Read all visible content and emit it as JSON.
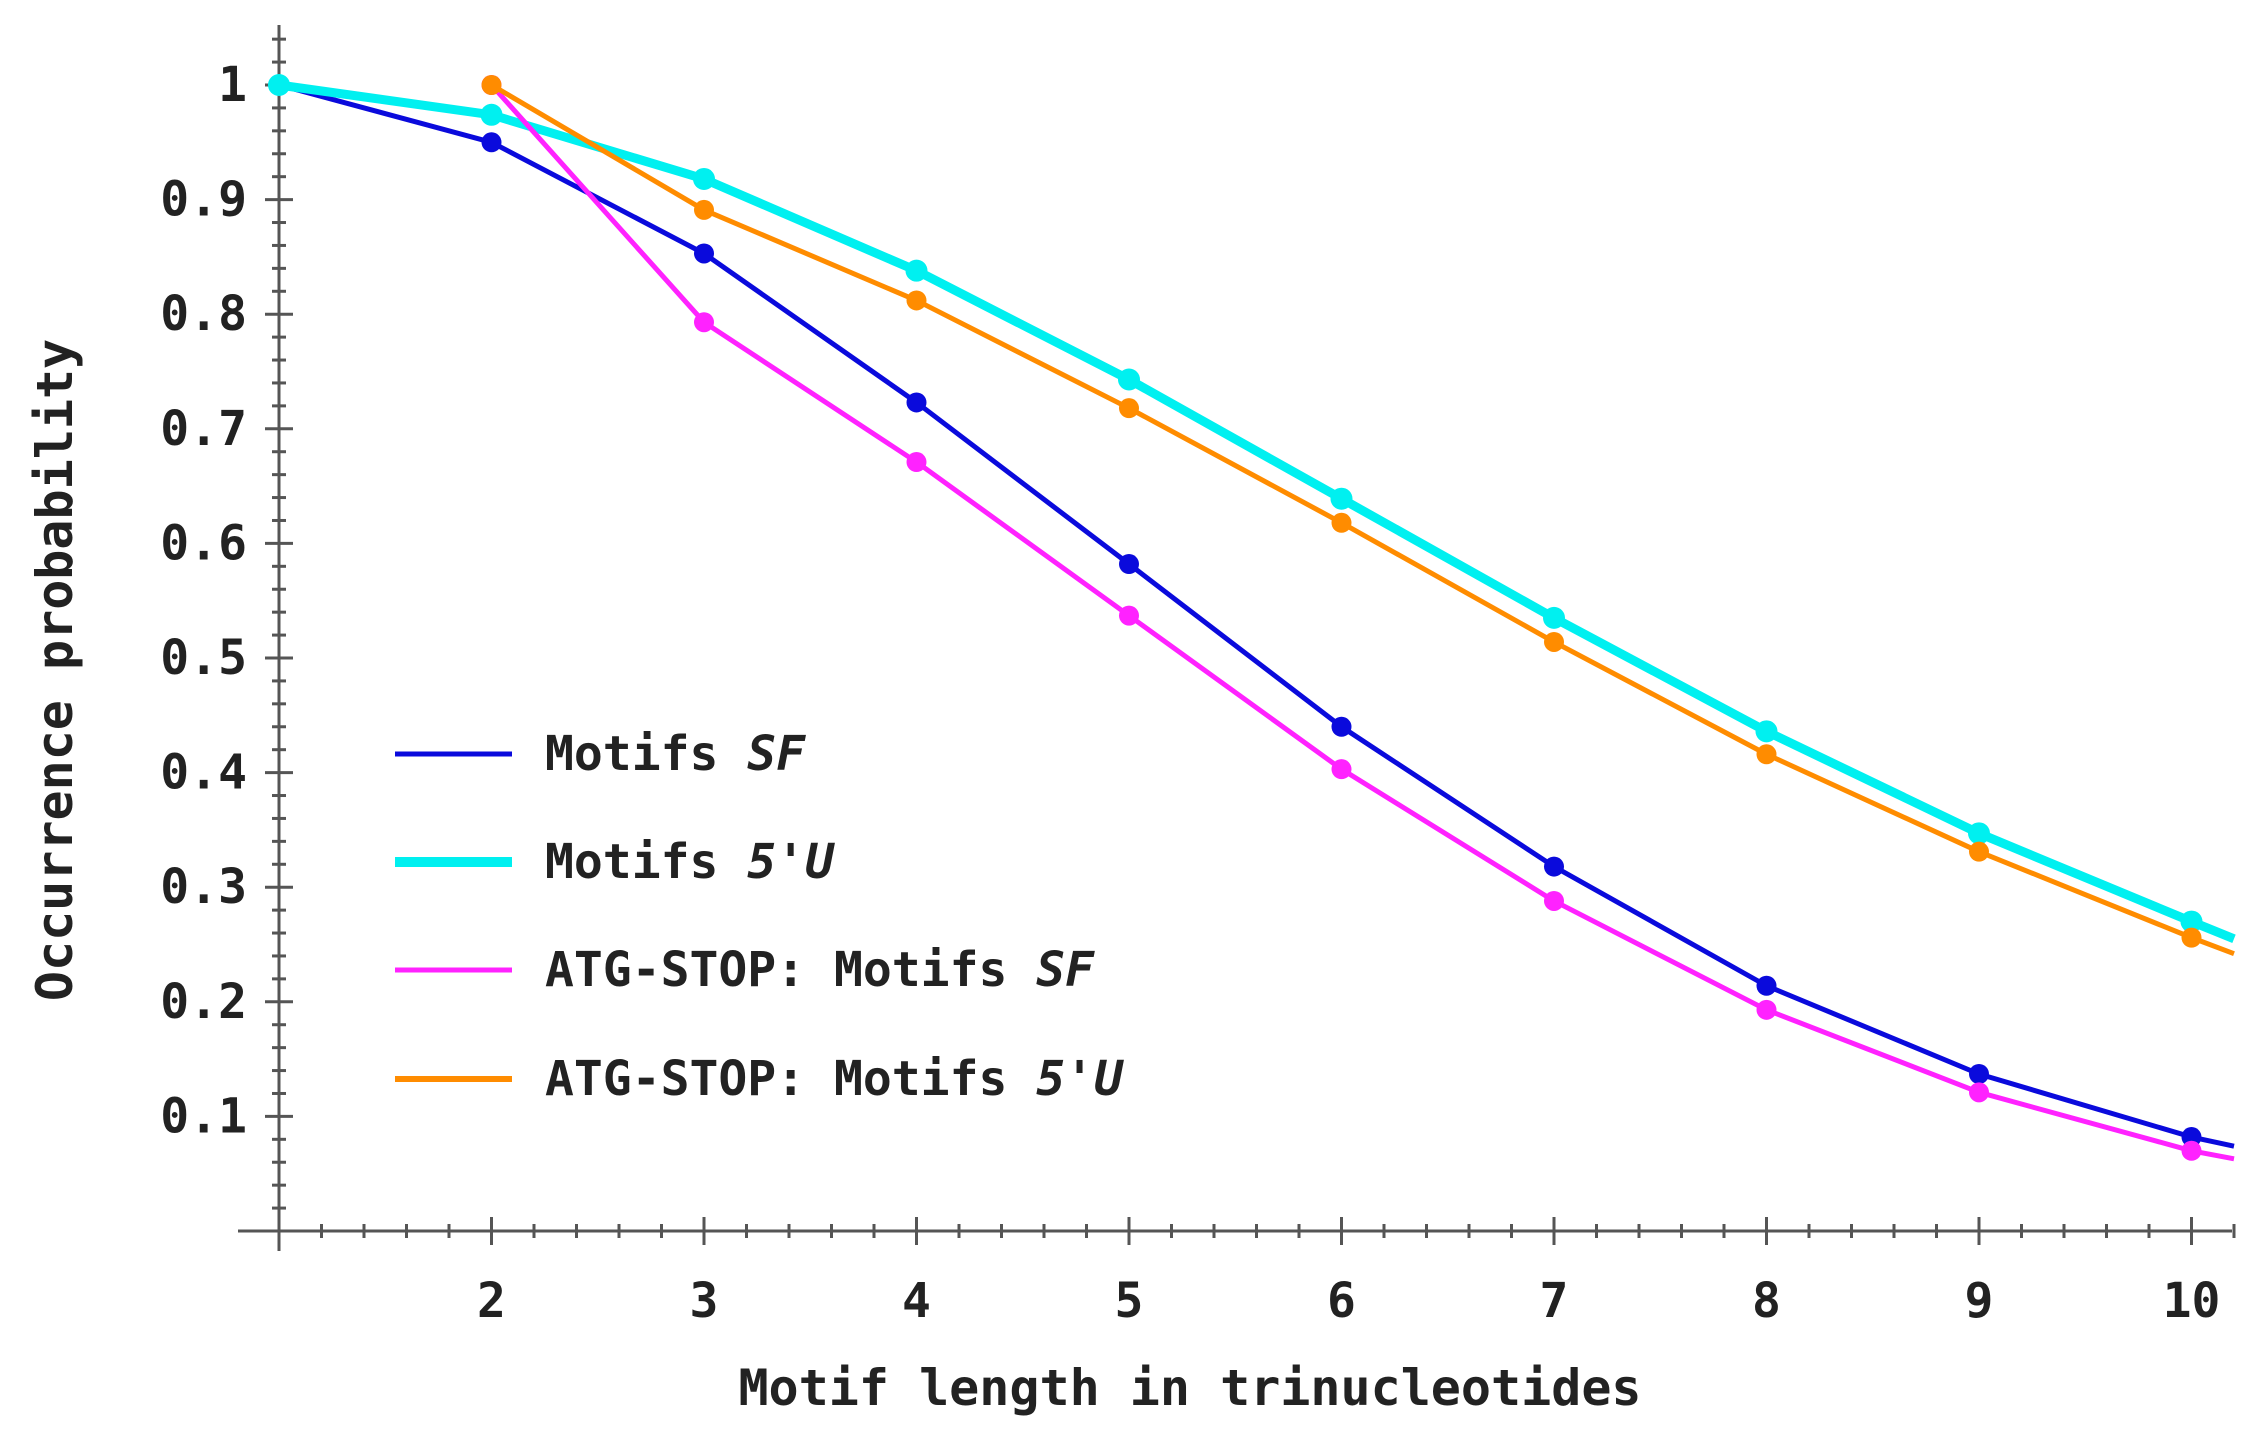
{
  "chart_data": {
    "type": "line",
    "title": "",
    "xlabel": "Motif length in trinucleotides",
    "ylabel": "Occurrence probability",
    "xlim": [
      1,
      10.2
    ],
    "ylim": [
      0,
      1.06
    ],
    "x_ticks": [
      2,
      3,
      4,
      5,
      6,
      7,
      8,
      9,
      10
    ],
    "y_ticks": [
      0.1,
      0.2,
      0.3,
      0.4,
      0.5,
      0.6,
      0.7,
      0.8,
      0.9,
      1
    ],
    "y_tick_labels": [
      "0.1",
      "0.2",
      "0.3",
      "0.4",
      "0.5",
      "0.6",
      "0.7",
      "0.8",
      "0.9",
      "1"
    ],
    "grid": false,
    "legend_position": "lower-left",
    "series": [
      {
        "name": "Motifs SF",
        "name_parts": [
          "Motifs ",
          "SF"
        ],
        "color": "#0a0adc",
        "x": [
          1,
          2,
          3,
          4,
          5,
          6,
          7,
          8,
          9,
          10
        ],
        "y": [
          1.0,
          0.95,
          0.853,
          0.723,
          0.582,
          0.44,
          0.318,
          0.214,
          0.137,
          0.082
        ],
        "extend_to": [
          10.2,
          0.074
        ]
      },
      {
        "name": "Motifs 5'U",
        "name_parts": [
          "Motifs ",
          "5'U"
        ],
        "color": "#00f0f0",
        "x": [
          1,
          2,
          3,
          4,
          5,
          6,
          7,
          8,
          9,
          10
        ],
        "y": [
          1.0,
          0.974,
          0.918,
          0.838,
          0.743,
          0.639,
          0.535,
          0.436,
          0.347,
          0.27
        ],
        "extend_to": [
          10.2,
          0.255
        ]
      },
      {
        "name": "ATG-STOP: Motifs SF",
        "name_parts": [
          "ATG-STOP: Motifs ",
          "SF"
        ],
        "color": "#ff22ff",
        "x": [
          2,
          3,
          4,
          5,
          6,
          7,
          8,
          9,
          10
        ],
        "y": [
          1.0,
          0.793,
          0.671,
          0.537,
          0.403,
          0.288,
          0.193,
          0.121,
          0.07
        ],
        "extend_to": [
          10.2,
          0.063
        ]
      },
      {
        "name": "ATG-STOP: Motifs 5'U",
        "name_parts": [
          "ATG-STOP: Motifs ",
          "5'U"
        ],
        "color": "#ff8c00",
        "x": [
          2,
          3,
          4,
          5,
          6,
          7,
          8,
          9,
          10
        ],
        "y": [
          1.0,
          0.891,
          0.812,
          0.718,
          0.618,
          0.514,
          0.416,
          0.331,
          0.256
        ],
        "extend_to": [
          10.2,
          0.242
        ]
      }
    ]
  }
}
